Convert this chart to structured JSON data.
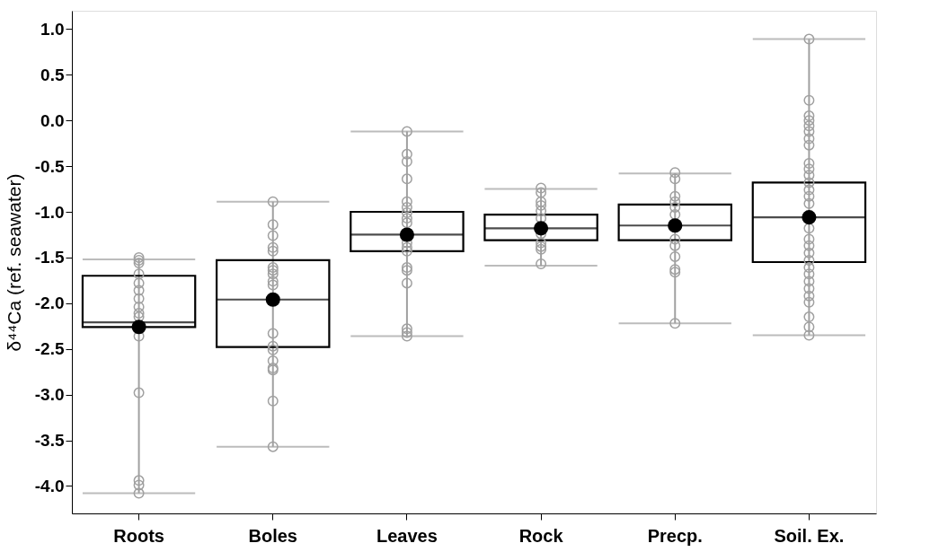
{
  "chart_data": {
    "type": "box",
    "ylabel": "δ⁴⁴Ca (ref. seawater)",
    "categories": [
      "Roots",
      "Boles",
      "Leaves",
      "Rock",
      "Precp.",
      "Soil. Ex."
    ],
    "ylim": [
      -4.3,
      1.2
    ],
    "yticks": [
      {
        "value": 1,
        "label": "1.0"
      },
      0.5,
      {
        "value": 0,
        "label": "0.0"
      },
      -0.5,
      {
        "value": -1,
        "label": "-1.0"
      },
      -1.5,
      {
        "value": -2,
        "label": "-2.0"
      },
      -2.5,
      {
        "value": -3,
        "label": "-3.0"
      },
      -3.5,
      {
        "value": -4,
        "label": "-4.0"
      }
    ],
    "grid": false,
    "series": [
      {
        "color": "#000000",
        "boxes": [
          {
            "low": -4.08,
            "q1": -2.26,
            "median": -2.21,
            "q3": -1.7,
            "high": -1.52,
            "mean": -2.26
          },
          {
            "low": -3.57,
            "q1": -2.48,
            "median": -1.96,
            "q3": -1.53,
            "high": -0.89,
            "mean": -1.96
          },
          {
            "low": -2.36,
            "q1": -1.43,
            "median": -1.25,
            "q3": -1.0,
            "high": -0.12,
            "mean": -1.25
          },
          {
            "low": -1.59,
            "q1": -1.31,
            "median": -1.18,
            "q3": -1.03,
            "high": -0.75,
            "mean": -1.18
          },
          {
            "low": -2.22,
            "q1": -1.31,
            "median": -1.15,
            "q3": -0.92,
            "high": -0.58,
            "mean": -1.15
          },
          {
            "low": -2.35,
            "q1": -1.55,
            "median": -1.06,
            "q3": -0.68,
            "high": 0.89,
            "mean": -1.06
          }
        ]
      },
      {
        "type": "scatter",
        "color": "#a0a0a0",
        "marker": "circle",
        "x": [
          "Roots",
          "Roots",
          "Roots",
          "Roots",
          "Roots",
          "Roots",
          "Roots",
          "Roots",
          "Roots",
          "Roots",
          "Roots",
          "Roots",
          "Roots",
          "Roots",
          "Roots",
          "Boles",
          "Boles",
          "Boles",
          "Boles",
          "Boles",
          "Boles",
          "Boles",
          "Boles",
          "Boles",
          "Boles",
          "Boles",
          "Boles",
          "Boles",
          "Boles",
          "Boles",
          "Boles",
          "Boles",
          "Boles",
          "Boles",
          "Leaves",
          "Leaves",
          "Leaves",
          "Leaves",
          "Leaves",
          "Leaves",
          "Leaves",
          "Leaves",
          "Leaves",
          "Leaves",
          "Leaves",
          "Leaves",
          "Leaves",
          "Leaves",
          "Leaves",
          "Leaves",
          "Leaves",
          "Leaves",
          "Rock",
          "Rock",
          "Rock",
          "Rock",
          "Rock",
          "Rock",
          "Rock",
          "Rock",
          "Rock",
          "Rock",
          "Rock",
          "Rock",
          "Precp.",
          "Precp.",
          "Precp.",
          "Precp.",
          "Precp.",
          "Precp.",
          "Precp.",
          "Precp.",
          "Precp.",
          "Precp.",
          "Precp.",
          "Precp.",
          "Precp.",
          "Soil. Ex.",
          "Soil. Ex.",
          "Soil. Ex.",
          "Soil. Ex.",
          "Soil. Ex.",
          "Soil. Ex.",
          "Soil. Ex.",
          "Soil. Ex.",
          "Soil. Ex.",
          "Soil. Ex.",
          "Soil. Ex.",
          "Soil. Ex.",
          "Soil. Ex.",
          "Soil. Ex.",
          "Soil. Ex.",
          "Soil. Ex.",
          "Soil. Ex.",
          "Soil. Ex.",
          "Soil. Ex.",
          "Soil. Ex.",
          "Soil. Ex.",
          "Soil. Ex.",
          "Soil. Ex.",
          "Soil. Ex.",
          "Soil. Ex.",
          "Soil. Ex.",
          "Soil. Ex.",
          "Soil. Ex.",
          "Soil. Ex.",
          "Soil. Ex."
        ],
        "values": [
          -1.5,
          -1.53,
          -1.56,
          -1.68,
          -1.78,
          -1.86,
          -1.95,
          -2.04,
          -2.11,
          -2.15,
          -2.36,
          -2.98,
          -3.94,
          -3.99,
          -4.08,
          -0.89,
          -1.14,
          -1.26,
          -1.39,
          -1.43,
          -1.61,
          -1.64,
          -1.68,
          -1.76,
          -1.8,
          null,
          -2.33,
          -2.47,
          -2.51,
          -2.63,
          -2.71,
          -2.73,
          -3.07,
          -3.57,
          -0.12,
          -0.37,
          -0.45,
          -0.64,
          -0.89,
          -0.95,
          -1.01,
          -1.07,
          -1.12,
          -1.34,
          -1.39,
          -1.43,
          -1.61,
          -1.64,
          -1.78,
          -2.28,
          -2.32,
          -2.36,
          -0.74,
          -0.79,
          -0.89,
          -0.93,
          -0.99,
          -1.07,
          null,
          -1.24,
          -1.34,
          -1.38,
          -1.41,
          -1.57,
          -0.57,
          -0.64,
          -0.83,
          -0.89,
          -0.95,
          -1.03,
          null,
          -1.3,
          -1.37,
          -1.49,
          -1.63,
          -1.66,
          -2.22,
          0.89,
          0.22,
          0.05,
          0.0,
          -0.06,
          -0.12,
          -0.2,
          -0.27,
          -0.47,
          -0.53,
          -0.6,
          -0.68,
          -0.76,
          -0.83,
          -0.91,
          null,
          -1.18,
          -1.3,
          -1.37,
          -1.45,
          -1.53,
          -1.61,
          -1.68,
          -1.76,
          -1.84,
          -1.92,
          -1.99,
          -2.15,
          -2.26,
          -2.35
        ]
      }
    ]
  }
}
